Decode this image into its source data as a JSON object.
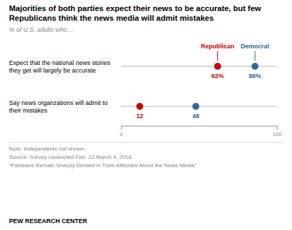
{
  "chart_data": {
    "type": "dot",
    "title": "Majorities of both parties expect their news to be accurate, but few Republicans think the news media will admit mistakes",
    "subtitle": "% of U.S. adults who ...",
    "categories": [
      "Expect that the national news stories they get will largely be accurate",
      "Say news organzations will admit to their mistakes"
    ],
    "series": [
      {
        "name": "Republican",
        "color": "#cc0000",
        "values": [
          62,
          12
        ],
        "value_labels": [
          "62%",
          "12"
        ]
      },
      {
        "name": "Democrat",
        "color": "#336699",
        "values": [
          86,
          48
        ],
        "value_labels": [
          "86%",
          "48"
        ]
      }
    ],
    "xlim": [
      0,
      100
    ],
    "xticks": [
      0,
      100
    ],
    "data_labels": true,
    "annotations": [
      "Note: Independents not shown.",
      "Source: Survey conducted Feb. 22-March 4, 2018.",
      "“Partisans Remain Sharply Divided in Their Attitudes About the News Media”"
    ],
    "footer": "PEW RESEARCH CENTER"
  }
}
